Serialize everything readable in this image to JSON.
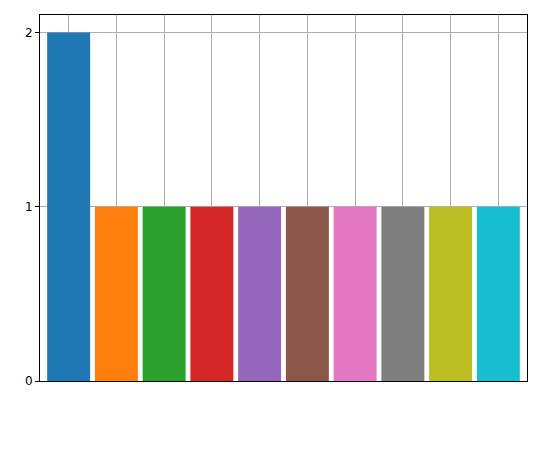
{
  "chart_data": {
    "type": "bar",
    "categories": [
      null,
      null,
      null,
      null,
      null,
      null,
      null,
      null,
      null,
      null
    ],
    "values": [
      2,
      1,
      1,
      1,
      1,
      1,
      1,
      1,
      1,
      1
    ],
    "colors": [
      "#1f77b4",
      "#ff7f0e",
      "#2ca02c",
      "#d62728",
      "#9467bd",
      "#8c564b",
      "#e377c2",
      "#7f7f7f",
      "#bcbd22",
      "#17becf"
    ],
    "ylim": [
      0,
      2.1
    ],
    "yticks": [
      0,
      1,
      2
    ],
    "grid": true,
    "tick_labels": "y"
  }
}
